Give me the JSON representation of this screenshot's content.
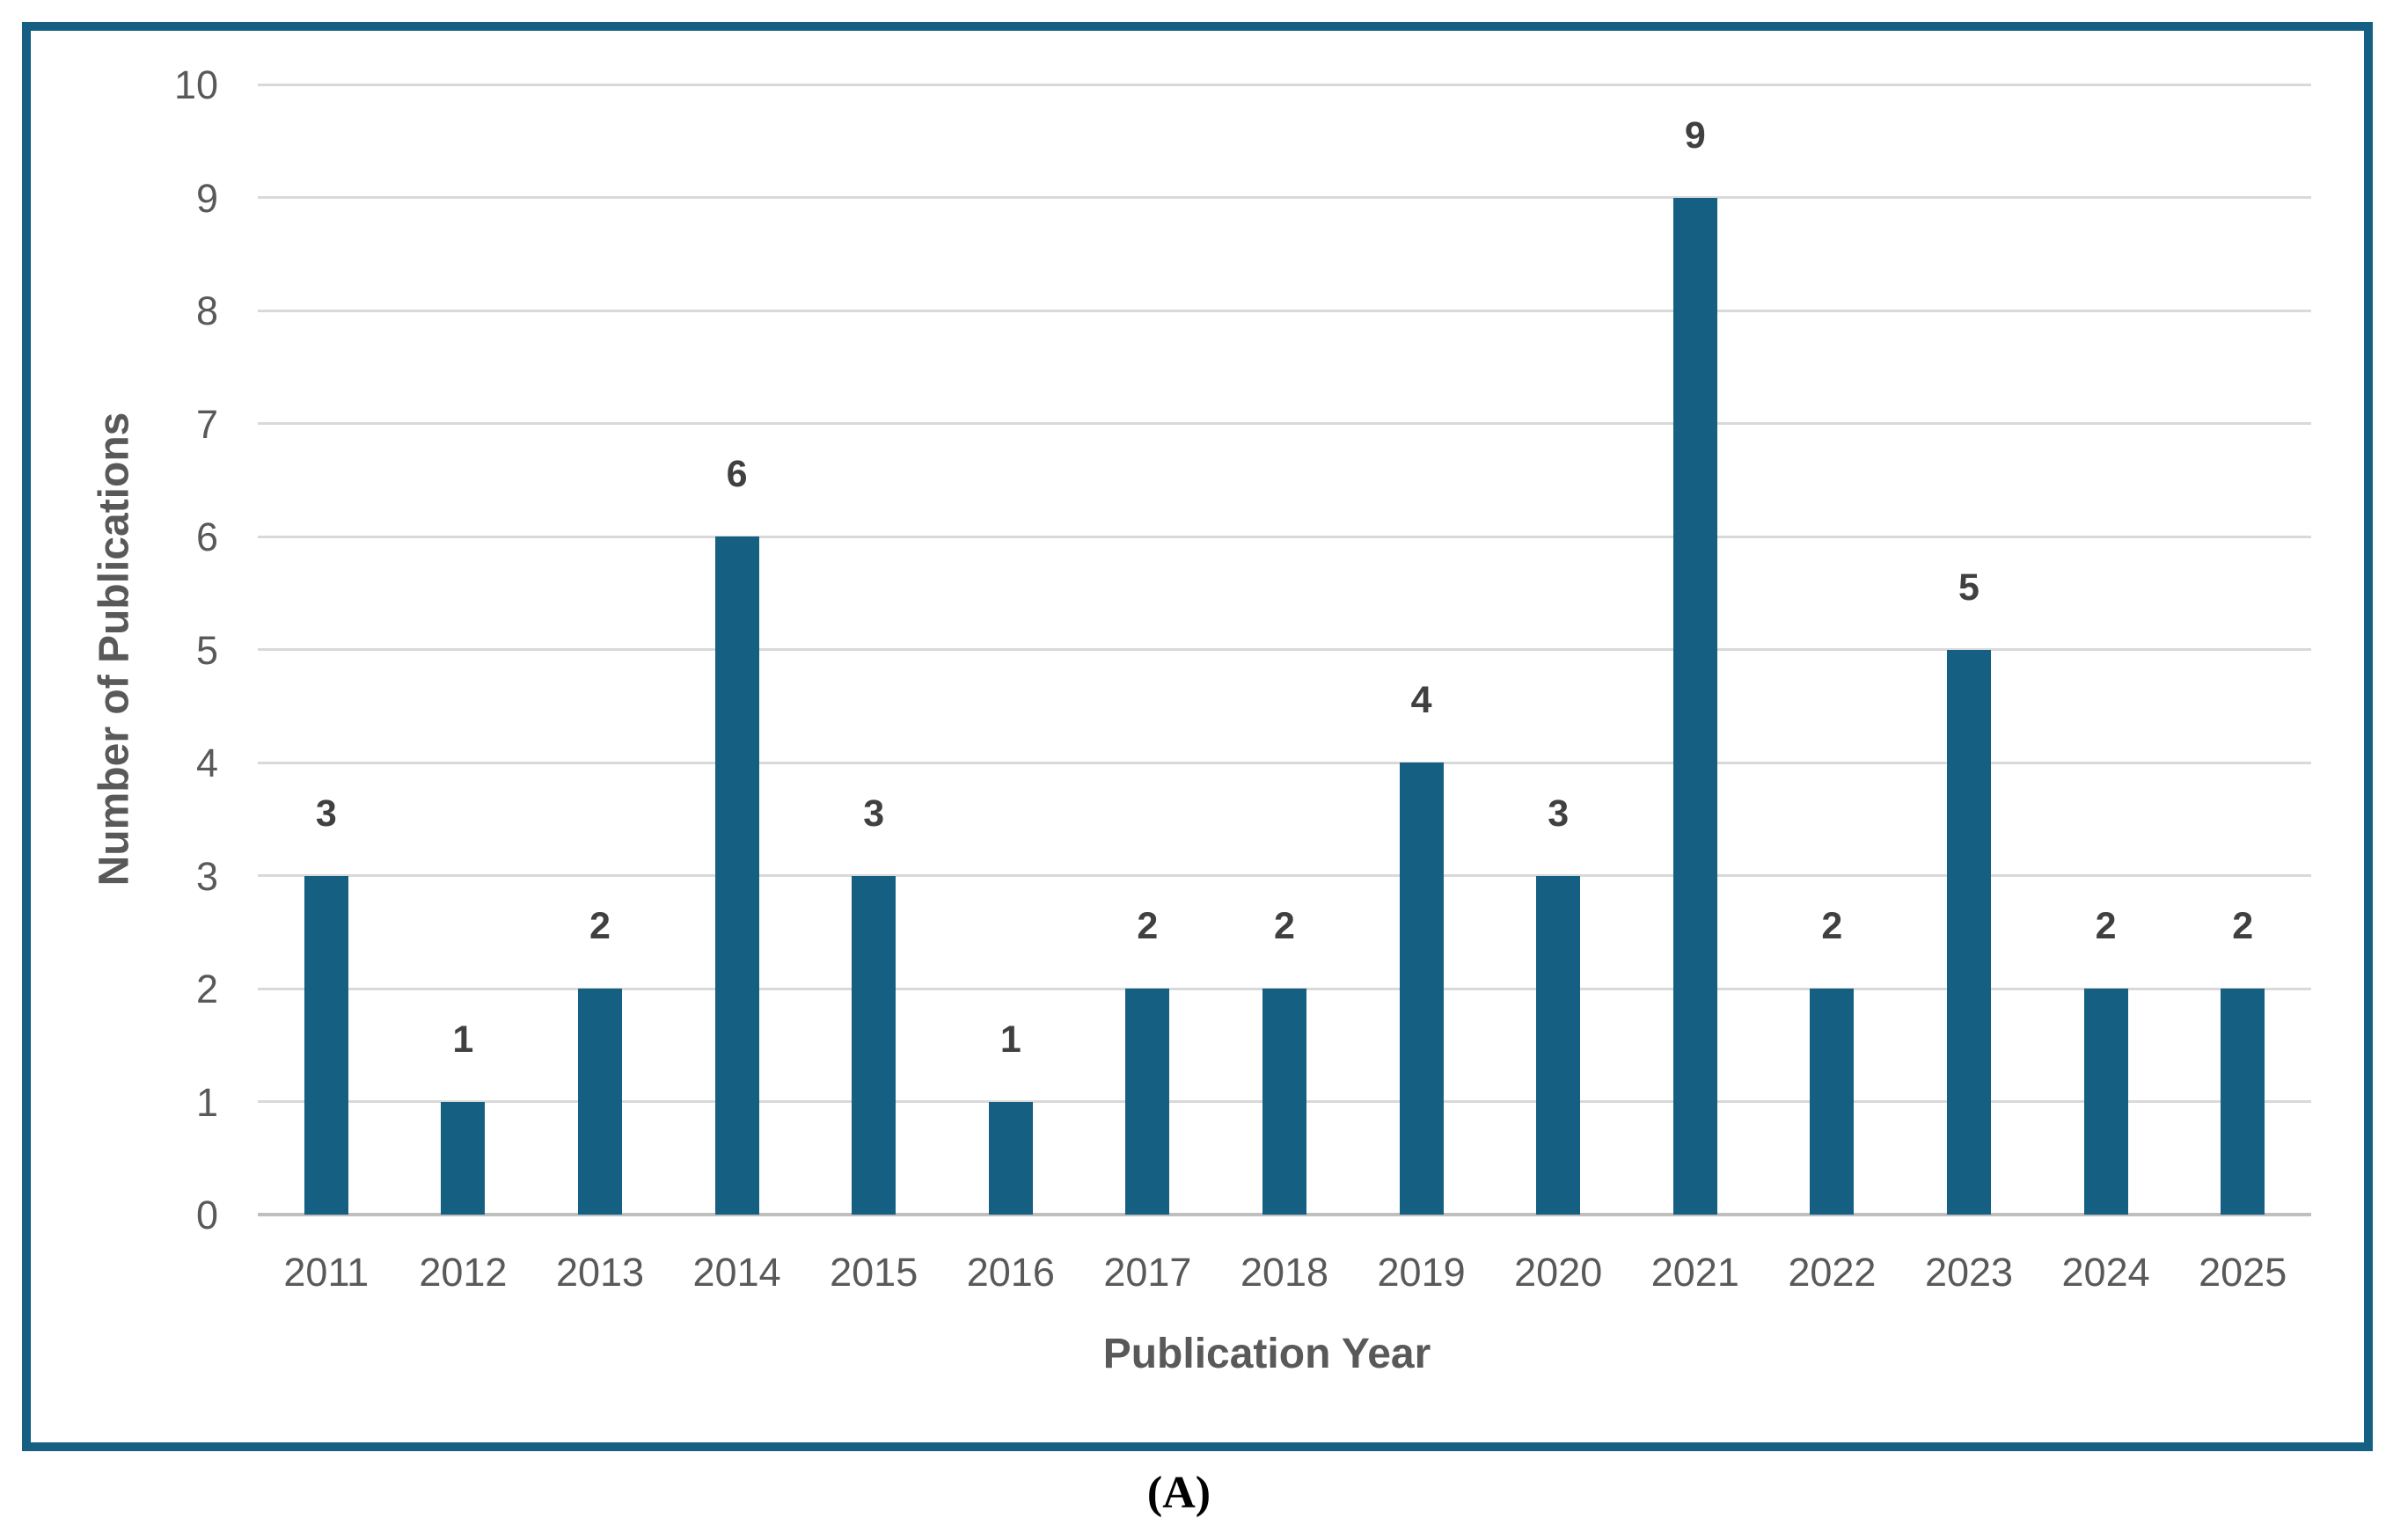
{
  "figure": {
    "caption": "(A)"
  },
  "chart_data": {
    "type": "bar",
    "title": "",
    "categories": [
      "2011",
      "2012",
      "2013",
      "2014",
      "2015",
      "2016",
      "2017",
      "2018",
      "2019",
      "2020",
      "2021",
      "2022",
      "2023",
      "2024",
      "2025"
    ],
    "values": [
      3,
      1,
      2,
      6,
      3,
      1,
      2,
      2,
      4,
      3,
      9,
      2,
      5,
      2,
      2
    ],
    "xlabel": "Publication Year",
    "ylabel": "Number of Publications",
    "ylim": [
      0,
      10
    ],
    "ytick_step": 1,
    "yticks": [
      "0",
      "1",
      "2",
      "3",
      "4",
      "5",
      "6",
      "7",
      "8",
      "9",
      "10"
    ],
    "grid": true,
    "legend": false,
    "data_labels": true
  },
  "colors": {
    "background": "#FFFFFF",
    "frame_border": "#156082",
    "bar_fill": "#156082",
    "gridline": "#D9D9D9",
    "axis_line": "#BFBFBF",
    "tick_label": "#595959",
    "axis_title": "#595959",
    "data_label": "#404040",
    "caption": "#000000"
  }
}
